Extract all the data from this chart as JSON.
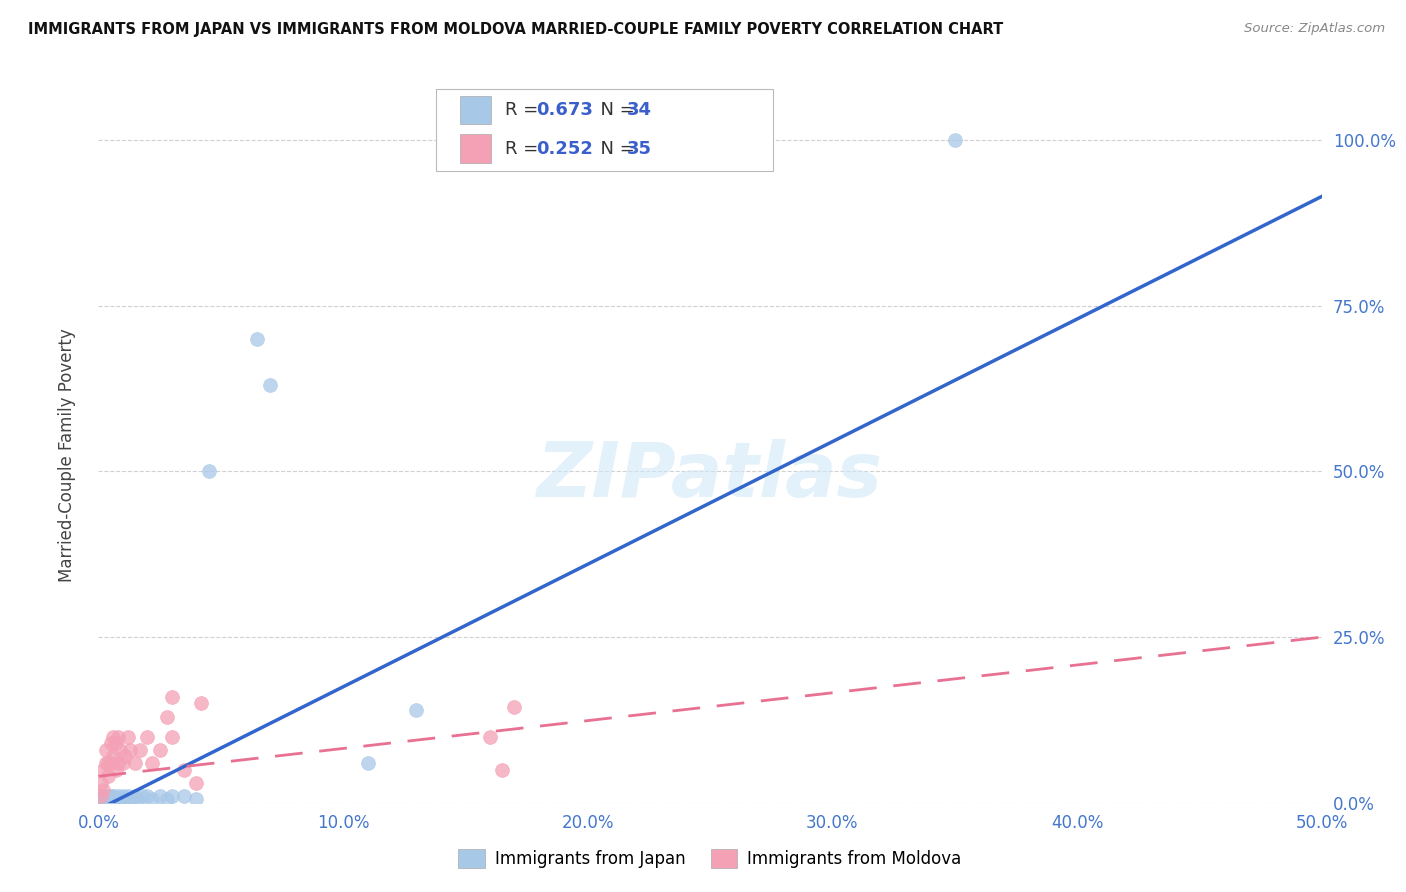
{
  "title": "IMMIGRANTS FROM JAPAN VS IMMIGRANTS FROM MOLDOVA MARRIED-COUPLE FAMILY POVERTY CORRELATION CHART",
  "source": "Source: ZipAtlas.com",
  "ylabel": "Married-Couple Family Poverty",
  "xlim": [
    0.0,
    0.5
  ],
  "ylim": [
    0.0,
    1.05
  ],
  "xticks": [
    0.0,
    0.1,
    0.2,
    0.3,
    0.4,
    0.5
  ],
  "yticks": [
    0.0,
    0.25,
    0.5,
    0.75,
    1.0
  ],
  "xticklabels": [
    "0.0%",
    "10.0%",
    "20.0%",
    "30.0%",
    "40.0%",
    "50.0%"
  ],
  "yticklabels": [
    "0.0%",
    "25.0%",
    "50.0%",
    "75.0%",
    "100.0%"
  ],
  "japan_color": "#a8c8e8",
  "moldova_color": "#f4a0b5",
  "japan_line_color": "#3366cc",
  "moldova_line_color": "#e87090",
  "japan_R": 0.673,
  "japan_N": 34,
  "moldova_R": 0.252,
  "moldova_N": 35,
  "watermark": "ZIPatlas",
  "japan_slope": 1.85,
  "japan_intercept": -0.01,
  "moldova_slope": 0.42,
  "moldova_intercept": 0.04,
  "japan_points_x": [
    0.001,
    0.002,
    0.002,
    0.003,
    0.003,
    0.004,
    0.004,
    0.005,
    0.005,
    0.006,
    0.006,
    0.007,
    0.008,
    0.009,
    0.01,
    0.011,
    0.012,
    0.013,
    0.015,
    0.016,
    0.018,
    0.02,
    0.022,
    0.025,
    0.028,
    0.03,
    0.035,
    0.04,
    0.045,
    0.065,
    0.07,
    0.11,
    0.13,
    0.35
  ],
  "japan_points_y": [
    0.005,
    0.005,
    0.01,
    0.005,
    0.01,
    0.005,
    0.01,
    0.005,
    0.01,
    0.005,
    0.01,
    0.005,
    0.01,
    0.005,
    0.01,
    0.005,
    0.01,
    0.005,
    0.01,
    0.005,
    0.01,
    0.01,
    0.005,
    0.01,
    0.005,
    0.01,
    0.01,
    0.005,
    0.5,
    0.7,
    0.63,
    0.06,
    0.14,
    1.0
  ],
  "moldova_points_x": [
    0.001,
    0.001,
    0.002,
    0.002,
    0.003,
    0.003,
    0.004,
    0.004,
    0.005,
    0.005,
    0.006,
    0.006,
    0.007,
    0.007,
    0.008,
    0.008,
    0.009,
    0.01,
    0.011,
    0.012,
    0.013,
    0.015,
    0.017,
    0.02,
    0.022,
    0.025,
    0.028,
    0.03,
    0.03,
    0.035,
    0.04,
    0.042,
    0.16,
    0.165,
    0.17
  ],
  "moldova_points_y": [
    0.01,
    0.03,
    0.02,
    0.05,
    0.06,
    0.08,
    0.04,
    0.06,
    0.06,
    0.09,
    0.07,
    0.1,
    0.05,
    0.09,
    0.06,
    0.1,
    0.08,
    0.06,
    0.07,
    0.1,
    0.08,
    0.06,
    0.08,
    0.1,
    0.06,
    0.08,
    0.13,
    0.1,
    0.16,
    0.05,
    0.03,
    0.15,
    0.1,
    0.05,
    0.145
  ]
}
